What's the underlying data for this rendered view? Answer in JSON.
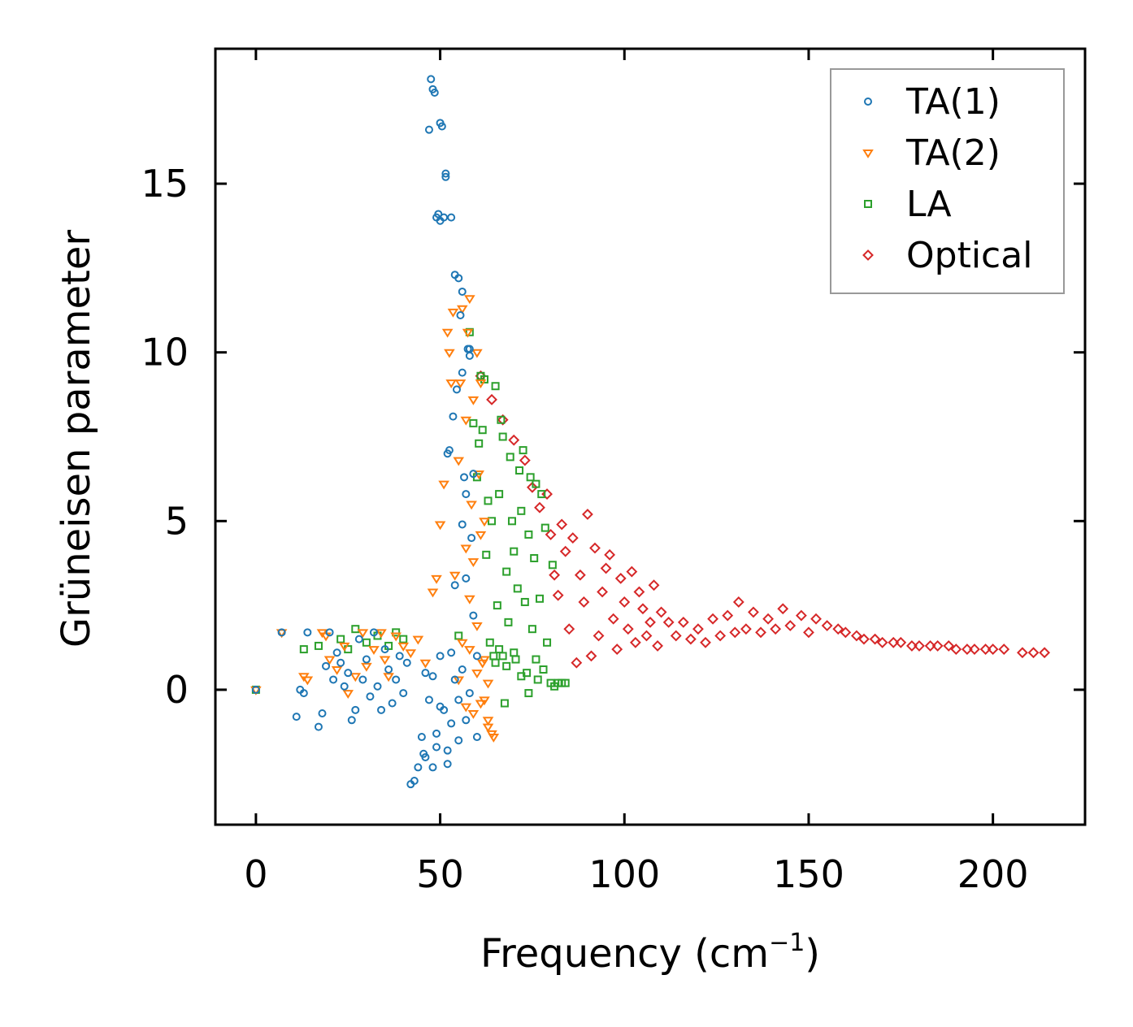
{
  "chart_data": {
    "type": "scatter",
    "title": "",
    "xlabel": "Frequency (cm",
    "xlabel_sup": "−1",
    "xlabel_end": ")",
    "ylabel": "Grüneisen parameter",
    "xlim": [
      -11,
      225
    ],
    "ylim": [
      -4,
      19
    ],
    "xticks": [
      0,
      50,
      100,
      150,
      200
    ],
    "yticks": [
      0,
      5,
      10,
      15
    ],
    "xtick_labels": [
      "0",
      "50",
      "100",
      "150",
      "200"
    ],
    "ytick_labels": [
      "0",
      "5",
      "10",
      "15"
    ],
    "grid": false,
    "legend_position": "top-right",
    "series": [
      {
        "name": "TA(1)",
        "color": "#1f77b4",
        "marker": "circle",
        "points": [
          [
            0,
            0
          ],
          [
            7,
            1.7
          ],
          [
            11,
            -0.8
          ],
          [
            12,
            0
          ],
          [
            13,
            -0.1
          ],
          [
            14,
            1.7
          ],
          [
            17,
            -1.1
          ],
          [
            18,
            -0.7
          ],
          [
            19,
            0.7
          ],
          [
            20,
            1.7
          ],
          [
            21,
            0.3
          ],
          [
            22,
            1.1
          ],
          [
            23,
            0.8
          ],
          [
            24,
            0.1
          ],
          [
            25,
            0.5
          ],
          [
            26,
            -0.9
          ],
          [
            27,
            -0.6
          ],
          [
            28,
            1.5
          ],
          [
            29,
            0.3
          ],
          [
            30,
            0.9
          ],
          [
            31,
            -0.2
          ],
          [
            32,
            1.7
          ],
          [
            33,
            0.1
          ],
          [
            34,
            -0.6
          ],
          [
            35,
            1.2
          ],
          [
            36,
            0.6
          ],
          [
            37,
            -0.4
          ],
          [
            38,
            0.3
          ],
          [
            39,
            1.0
          ],
          [
            40,
            -0.1
          ],
          [
            41,
            0.8
          ],
          [
            42,
            -2.8
          ],
          [
            43,
            -2.7
          ],
          [
            44,
            -2.3
          ],
          [
            45,
            -1.4
          ],
          [
            45.5,
            -1.9
          ],
          [
            46,
            -2.0
          ],
          [
            46,
            0.5
          ],
          [
            47,
            -0.3
          ],
          [
            47,
            16.6
          ],
          [
            47.5,
            18.1
          ],
          [
            48,
            -2.3
          ],
          [
            48,
            17.8
          ],
          [
            48.5,
            17.7
          ],
          [
            49,
            -1.3
          ],
          [
            49,
            14.0
          ],
          [
            49.5,
            14.1
          ],
          [
            50,
            13.9
          ],
          [
            50,
            16.8
          ],
          [
            50,
            -0.5
          ],
          [
            50.5,
            16.7
          ],
          [
            51,
            14.0
          ],
          [
            51.5,
            15.3
          ],
          [
            51.5,
            15.2
          ],
          [
            52,
            -1.8
          ],
          [
            52,
            7.0
          ],
          [
            52.5,
            7.1
          ],
          [
            53,
            14.0
          ],
          [
            53,
            -1.0
          ],
          [
            53.5,
            8.1
          ],
          [
            54,
            12.3
          ],
          [
            54,
            3.1
          ],
          [
            54.5,
            8.9
          ],
          [
            55,
            12.2
          ],
          [
            55,
            -1.5
          ],
          [
            55.5,
            11.1
          ],
          [
            56,
            11.8
          ],
          [
            56,
            4.9
          ],
          [
            56,
            9.4
          ],
          [
            56.5,
            6.3
          ],
          [
            57,
            5.8
          ],
          [
            57,
            3.3
          ],
          [
            57.5,
            10.1
          ],
          [
            58,
            10.1
          ],
          [
            58,
            9.9
          ],
          [
            58,
            -0.1
          ],
          [
            58.5,
            4.5
          ],
          [
            59,
            6.4
          ],
          [
            59,
            2.2
          ],
          [
            60,
            -1.4
          ],
          [
            60,
            1.0
          ],
          [
            55,
            -0.3
          ],
          [
            56,
            0.6
          ],
          [
            57,
            -0.9
          ],
          [
            54,
            0.3
          ],
          [
            53,
            1.1
          ],
          [
            52,
            -2.2
          ],
          [
            51,
            -0.6
          ],
          [
            50,
            1.0
          ],
          [
            49,
            -1.7
          ],
          [
            48,
            0.4
          ]
        ]
      },
      {
        "name": "TA(2)",
        "color": "#ff7f0e",
        "marker": "triangle-down",
        "points": [
          [
            0,
            0
          ],
          [
            7,
            1.7
          ],
          [
            13,
            0.4
          ],
          [
            14,
            0.3
          ],
          [
            18,
            1.7
          ],
          [
            19,
            1.6
          ],
          [
            20,
            0.9
          ],
          [
            22,
            0.6
          ],
          [
            24,
            1.3
          ],
          [
            25,
            -0.1
          ],
          [
            27,
            0.4
          ],
          [
            29,
            1.7
          ],
          [
            30,
            0.7
          ],
          [
            32,
            1.2
          ],
          [
            34,
            1.7
          ],
          [
            35,
            0.9
          ],
          [
            36,
            0.4
          ],
          [
            38,
            1.6
          ],
          [
            40,
            1.3
          ],
          [
            42,
            1.1
          ],
          [
            44,
            1.5
          ],
          [
            46,
            0.8
          ],
          [
            48,
            2.9
          ],
          [
            49,
            3.3
          ],
          [
            50,
            4.9
          ],
          [
            51,
            6.1
          ],
          [
            52,
            10.6
          ],
          [
            52.5,
            10.0
          ],
          [
            53,
            9.1
          ],
          [
            53.5,
            11.2
          ],
          [
            54,
            3.4
          ],
          [
            55,
            6.8
          ],
          [
            55.5,
            9.1
          ],
          [
            56,
            11.3
          ],
          [
            57,
            4.2
          ],
          [
            57,
            8.0
          ],
          [
            57.5,
            10.6
          ],
          [
            58,
            11.6
          ],
          [
            58,
            2.7
          ],
          [
            58.5,
            5.5
          ],
          [
            59,
            3.8
          ],
          [
            59,
            8.6
          ],
          [
            60,
            10.0
          ],
          [
            60,
            1.9
          ],
          [
            60.5,
            6.4
          ],
          [
            61,
            4.6
          ],
          [
            61,
            9.1
          ],
          [
            61.5,
            0.8
          ],
          [
            62,
            -0.3
          ],
          [
            62,
            5.0
          ],
          [
            63,
            -1.1
          ],
          [
            63,
            0.2
          ],
          [
            64,
            -1.3
          ],
          [
            64.5,
            -1.4
          ],
          [
            56,
            1.4
          ],
          [
            55,
            0.3
          ],
          [
            57,
            -0.5
          ],
          [
            58,
            1.2
          ],
          [
            59,
            -0.7
          ],
          [
            60,
            0.5
          ],
          [
            61,
            -0.4
          ],
          [
            62,
            0.9
          ],
          [
            63,
            -0.9
          ]
        ]
      },
      {
        "name": "LA",
        "color": "#2ca02c",
        "marker": "square",
        "points": [
          [
            0,
            0
          ],
          [
            13,
            1.2
          ],
          [
            17,
            1.3
          ],
          [
            23,
            1.5
          ],
          [
            25,
            1.2
          ],
          [
            27,
            1.8
          ],
          [
            30,
            1.4
          ],
          [
            33,
            1.6
          ],
          [
            36,
            1.3
          ],
          [
            38,
            1.7
          ],
          [
            40,
            1.5
          ],
          [
            55,
            1.6
          ],
          [
            58,
            10.6
          ],
          [
            59,
            7.9
          ],
          [
            60,
            6.3
          ],
          [
            60.5,
            7.3
          ],
          [
            61,
            9.3
          ],
          [
            61.5,
            7.7
          ],
          [
            62,
            9.2
          ],
          [
            62.5,
            4.0
          ],
          [
            63,
            5.6
          ],
          [
            63.5,
            1.4
          ],
          [
            64,
            5.0
          ],
          [
            64.5,
            1.0
          ],
          [
            65,
            9.0
          ],
          [
            65.5,
            2.5
          ],
          [
            66,
            5.8
          ],
          [
            66.5,
            8.0
          ],
          [
            67,
            7.5
          ],
          [
            67,
            1.0
          ],
          [
            67.5,
            -0.4
          ],
          [
            68,
            3.5
          ],
          [
            68.5,
            2.0
          ],
          [
            69,
            6.9
          ],
          [
            69.5,
            5.0
          ],
          [
            70,
            4.1
          ],
          [
            70.5,
            0.9
          ],
          [
            71,
            3.0
          ],
          [
            71.5,
            6.5
          ],
          [
            72,
            5.3
          ],
          [
            72.5,
            7.1
          ],
          [
            73,
            2.6
          ],
          [
            73.5,
            0.5
          ],
          [
            74,
            4.6
          ],
          [
            74.5,
            6.3
          ],
          [
            75,
            1.8
          ],
          [
            75.5,
            3.9
          ],
          [
            76,
            6.1
          ],
          [
            76.5,
            0.3
          ],
          [
            77,
            2.7
          ],
          [
            77.5,
            5.8
          ],
          [
            78,
            0.6
          ],
          [
            78.5,
            4.8
          ],
          [
            79,
            1.4
          ],
          [
            80,
            0.2
          ],
          [
            80.5,
            3.7
          ],
          [
            81,
            0.1
          ],
          [
            82,
            0.2
          ],
          [
            83,
            0.2
          ],
          [
            84,
            0.2
          ],
          [
            65,
            0.8
          ],
          [
            66,
            1.2
          ],
          [
            68,
            0.7
          ],
          [
            70,
            1.1
          ],
          [
            72,
            0.4
          ],
          [
            74,
            -0.1
          ],
          [
            76,
            0.9
          ]
        ]
      },
      {
        "name": "Optical",
        "color": "#d62728",
        "marker": "diamond",
        "points": [
          [
            61,
            9.3
          ],
          [
            64,
            8.6
          ],
          [
            67,
            8.0
          ],
          [
            70,
            7.4
          ],
          [
            73,
            6.8
          ],
          [
            75,
            6.0
          ],
          [
            77,
            5.4
          ],
          [
            79,
            5.8
          ],
          [
            80,
            4.6
          ],
          [
            81,
            3.4
          ],
          [
            82,
            2.8
          ],
          [
            83,
            4.9
          ],
          [
            84,
            4.1
          ],
          [
            85,
            1.8
          ],
          [
            86,
            4.5
          ],
          [
            87,
            0.8
          ],
          [
            88,
            3.4
          ],
          [
            89,
            2.6
          ],
          [
            90,
            5.2
          ],
          [
            91,
            1.0
          ],
          [
            92,
            4.2
          ],
          [
            93,
            1.6
          ],
          [
            94,
            2.9
          ],
          [
            95,
            3.6
          ],
          [
            96,
            4.0
          ],
          [
            97,
            2.1
          ],
          [
            98,
            1.2
          ],
          [
            99,
            3.3
          ],
          [
            100,
            2.6
          ],
          [
            101,
            1.8
          ],
          [
            102,
            3.5
          ],
          [
            103,
            1.4
          ],
          [
            104,
            2.9
          ],
          [
            105,
            2.4
          ],
          [
            106,
            1.6
          ],
          [
            107,
            2.0
          ],
          [
            108,
            3.1
          ],
          [
            109,
            1.3
          ],
          [
            110,
            2.3
          ],
          [
            112,
            2.0
          ],
          [
            114,
            1.6
          ],
          [
            116,
            2.0
          ],
          [
            118,
            1.5
          ],
          [
            120,
            1.8
          ],
          [
            122,
            1.4
          ],
          [
            124,
            2.1
          ],
          [
            126,
            1.6
          ],
          [
            128,
            2.2
          ],
          [
            130,
            1.7
          ],
          [
            131,
            2.6
          ],
          [
            133,
            1.8
          ],
          [
            135,
            2.3
          ],
          [
            137,
            1.7
          ],
          [
            139,
            2.1
          ],
          [
            141,
            1.8
          ],
          [
            143,
            2.4
          ],
          [
            145,
            1.9
          ],
          [
            148,
            2.2
          ],
          [
            150,
            1.7
          ],
          [
            152,
            2.1
          ],
          [
            155,
            1.9
          ],
          [
            158,
            1.8
          ],
          [
            160,
            1.7
          ],
          [
            163,
            1.6
          ],
          [
            165,
            1.5
          ],
          [
            168,
            1.5
          ],
          [
            170,
            1.4
          ],
          [
            173,
            1.4
          ],
          [
            175,
            1.4
          ],
          [
            178,
            1.3
          ],
          [
            180,
            1.3
          ],
          [
            183,
            1.3
          ],
          [
            185,
            1.3
          ],
          [
            188,
            1.3
          ],
          [
            190,
            1.2
          ],
          [
            193,
            1.2
          ],
          [
            195,
            1.2
          ],
          [
            198,
            1.2
          ],
          [
            200,
            1.2
          ],
          [
            203,
            1.2
          ],
          [
            208,
            1.1
          ],
          [
            211,
            1.1
          ],
          [
            214,
            1.1
          ]
        ]
      }
    ]
  }
}
